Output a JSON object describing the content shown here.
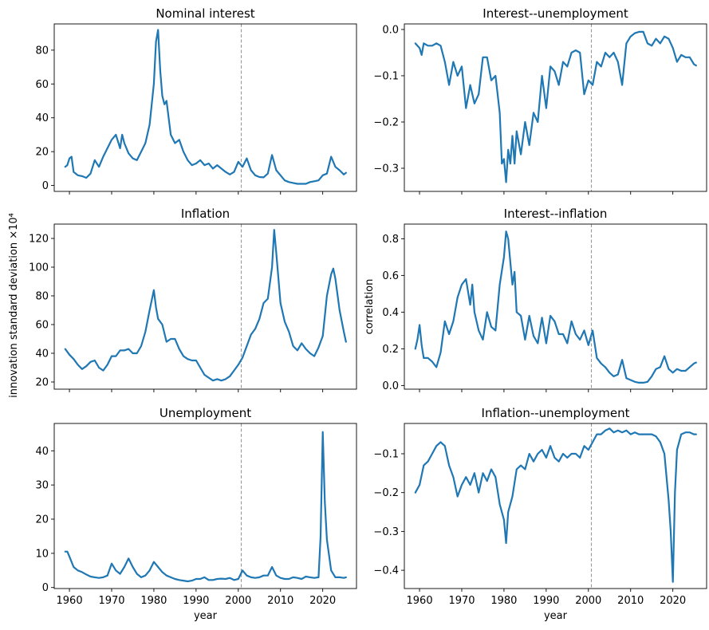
{
  "figure": {
    "ylabel_left": "innovation standard deviation ×10⁴",
    "ylabel_right": "correlation",
    "xlabel": "year"
  },
  "chart_data": [
    {
      "type": "line",
      "title": "Nominal interest",
      "xlim": [
        1956.4,
        2028.0
      ],
      "ylim": [
        -3.5,
        95.5
      ],
      "yticks": [
        0,
        20,
        40,
        60,
        80
      ],
      "xticks": [
        1960,
        1970,
        1980,
        1990,
        2000,
        2010,
        2020
      ],
      "show_xticklabels": false,
      "vline_x": 2000.7,
      "series": [
        {
          "color": "#1f77b4",
          "x": [
            1959,
            1959.5,
            1960,
            1960.5,
            1961,
            1962,
            1963,
            1964,
            1965,
            1966,
            1967,
            1968,
            1969,
            1970,
            1971,
            1972,
            1972.5,
            1973,
            1974,
            1975,
            1976,
            1977,
            1978,
            1979,
            1980,
            1980.5,
            1981,
            1981.5,
            1982,
            1982.5,
            1983,
            1984,
            1985,
            1986,
            1987,
            1988,
            1989,
            1990,
            1991,
            1992,
            1993,
            1994,
            1995,
            1996,
            1997,
            1998,
            1999,
            2000,
            2001,
            2002,
            2003,
            2004,
            2005,
            2006,
            2007,
            2008,
            2009,
            2010,
            2011,
            2012,
            2013,
            2014,
            2015,
            2016,
            2017,
            2018,
            2019,
            2020,
            2021,
            2022,
            2023,
            2024,
            2025,
            2025.5
          ],
          "y": [
            11,
            12,
            16,
            17,
            8,
            6,
            5.5,
            4.5,
            7,
            15,
            11,
            17,
            22,
            27,
            30,
            22,
            30,
            25,
            19,
            16,
            15,
            20,
            25,
            36,
            60,
            85,
            92,
            68,
            53,
            48,
            50,
            30,
            25,
            27,
            20,
            15,
            12,
            13,
            15,
            12,
            13,
            10,
            12,
            10,
            8,
            6.5,
            8,
            14,
            11,
            16,
            9,
            6,
            5,
            4.8,
            7,
            18,
            9,
            6,
            3,
            2,
            1.5,
            1,
            1,
            1,
            2,
            2.5,
            3,
            6,
            7,
            17,
            11,
            9,
            6.5,
            7.5
          ]
        }
      ]
    },
    {
      "type": "line",
      "title": "Interest--unemployment",
      "xlim": [
        1956.4,
        2028.0
      ],
      "ylim": [
        -0.35,
        0.012
      ],
      "yticks": [
        0.0,
        -0.1,
        -0.2,
        -0.3
      ],
      "ytick_labels": [
        "0.0",
        "−0.1",
        "−0.2",
        "−0.3"
      ],
      "xticks": [
        1960,
        1970,
        1980,
        1990,
        2000,
        2010,
        2020
      ],
      "show_xticklabels": false,
      "vline_x": 2000.7,
      "series": [
        {
          "color": "#1f77b4",
          "x": [
            1959,
            1960,
            1960.5,
            1961,
            1962,
            1963,
            1964,
            1965,
            1966,
            1967,
            1968,
            1969,
            1970,
            1971,
            1972,
            1973,
            1974,
            1975,
            1976,
            1977,
            1978,
            1979,
            1979.5,
            1980,
            1980.5,
            1981,
            1981.5,
            1982,
            1982.5,
            1983,
            1984,
            1985,
            1986,
            1987,
            1988,
            1989,
            1990,
            1991,
            1992,
            1993,
            1994,
            1995,
            1996,
            1997,
            1998,
            1999,
            2000,
            2001,
            2002,
            2003,
            2004,
            2005,
            2006,
            2007,
            2008,
            2009,
            2010,
            2011,
            2012,
            2013,
            2014,
            2015,
            2016,
            2017,
            2018,
            2019,
            2020,
            2021,
            2022,
            2023,
            2024,
            2025,
            2025.5
          ],
          "y": [
            -0.03,
            -0.04,
            -0.055,
            -0.03,
            -0.035,
            -0.035,
            -0.03,
            -0.035,
            -0.07,
            -0.12,
            -0.07,
            -0.1,
            -0.08,
            -0.17,
            -0.12,
            -0.16,
            -0.14,
            -0.06,
            -0.06,
            -0.11,
            -0.1,
            -0.18,
            -0.29,
            -0.28,
            -0.33,
            -0.26,
            -0.29,
            -0.23,
            -0.29,
            -0.22,
            -0.27,
            -0.2,
            -0.25,
            -0.18,
            -0.2,
            -0.1,
            -0.17,
            -0.08,
            -0.09,
            -0.12,
            -0.07,
            -0.08,
            -0.05,
            -0.045,
            -0.05,
            -0.14,
            -0.11,
            -0.12,
            -0.07,
            -0.08,
            -0.05,
            -0.06,
            -0.05,
            -0.07,
            -0.12,
            -0.03,
            -0.015,
            -0.008,
            -0.005,
            -0.005,
            -0.03,
            -0.035,
            -0.02,
            -0.03,
            -0.015,
            -0.02,
            -0.04,
            -0.07,
            -0.055,
            -0.06,
            -0.06,
            -0.075,
            -0.078
          ]
        }
      ]
    },
    {
      "type": "line",
      "title": "Inflation",
      "xlim": [
        1956.4,
        2028.0
      ],
      "ylim": [
        15,
        130
      ],
      "yticks": [
        20,
        40,
        60,
        80,
        100,
        120
      ],
      "xticks": [
        1960,
        1970,
        1980,
        1990,
        2000,
        2010,
        2020
      ],
      "show_xticklabels": false,
      "vline_x": 2000.7,
      "series": [
        {
          "color": "#1f77b4",
          "x": [
            1959,
            1960,
            1961,
            1962,
            1963,
            1964,
            1965,
            1966,
            1967,
            1968,
            1969,
            1970,
            1971,
            1972,
            1973,
            1974,
            1975,
            1976,
            1977,
            1978,
            1979,
            1980,
            1980.5,
            1981,
            1982,
            1983,
            1984,
            1985,
            1986,
            1987,
            1988,
            1989,
            1990,
            1991,
            1992,
            1993,
            1994,
            1995,
            1996,
            1997,
            1998,
            1999,
            2000,
            2001,
            2002,
            2003,
            2004,
            2005,
            2006,
            2007,
            2008,
            2008.5,
            2009,
            2010,
            2011,
            2012,
            2013,
            2014,
            2015,
            2016,
            2017,
            2018,
            2019,
            2020,
            2021,
            2022,
            2022.5,
            2023,
            2024,
            2025,
            2025.5
          ],
          "y": [
            43,
            39,
            36,
            32,
            29,
            31,
            34,
            35,
            30,
            28,
            32,
            38,
            38,
            42,
            42,
            43,
            40,
            40,
            45,
            55,
            70,
            84,
            72,
            64,
            60,
            48,
            50,
            50,
            43,
            38,
            36,
            35,
            35,
            30,
            25,
            23,
            21,
            22,
            21,
            22,
            24,
            28,
            32,
            37,
            45,
            53,
            57,
            64,
            75,
            78,
            100,
            126,
            110,
            75,
            62,
            55,
            45,
            42,
            47,
            43,
            40,
            38,
            44,
            52,
            80,
            95,
            99,
            92,
            70,
            55,
            48
          ]
        }
      ]
    },
    {
      "type": "line",
      "title": "Interest--inflation",
      "xlim": [
        1956.4,
        2028.0
      ],
      "ylim": [
        -0.02,
        0.88
      ],
      "yticks": [
        0.0,
        0.2,
        0.4,
        0.6,
        0.8
      ],
      "ytick_labels": [
        "0.0",
        "0.2",
        "0.4",
        "0.6",
        "0.8"
      ],
      "ylabel": "correlation",
      "xticks": [
        1960,
        1970,
        1980,
        1990,
        2000,
        2010,
        2020
      ],
      "show_xticklabels": false,
      "vline_x": 2000.7,
      "series": [
        {
          "color": "#1f77b4",
          "x": [
            1959,
            1959.5,
            1960,
            1960.5,
            1961,
            1962,
            1963,
            1964,
            1965,
            1966,
            1967,
            1968,
            1969,
            1970,
            1971,
            1972,
            1972.5,
            1973,
            1974,
            1975,
            1976,
            1977,
            1978,
            1979,
            1980,
            1980.5,
            1981,
            1982,
            1982.5,
            1983,
            1984,
            1985,
            1986,
            1987,
            1988,
            1989,
            1990,
            1991,
            1992,
            1993,
            1994,
            1995,
            1996,
            1997,
            1998,
            1999,
            2000,
            2001,
            2002,
            2003,
            2004,
            2005,
            2006,
            2007,
            2008,
            2009,
            2010,
            2011,
            2012,
            2013,
            2014,
            2015,
            2016,
            2017,
            2018,
            2019,
            2020,
            2021,
            2022,
            2023,
            2024,
            2025,
            2025.5
          ],
          "y": [
            0.2,
            0.25,
            0.33,
            0.22,
            0.15,
            0.15,
            0.13,
            0.1,
            0.18,
            0.35,
            0.28,
            0.35,
            0.48,
            0.55,
            0.58,
            0.44,
            0.55,
            0.4,
            0.3,
            0.25,
            0.4,
            0.32,
            0.3,
            0.55,
            0.7,
            0.84,
            0.8,
            0.55,
            0.62,
            0.4,
            0.38,
            0.25,
            0.38,
            0.27,
            0.23,
            0.37,
            0.23,
            0.38,
            0.35,
            0.28,
            0.28,
            0.23,
            0.35,
            0.28,
            0.25,
            0.3,
            0.22,
            0.3,
            0.15,
            0.12,
            0.1,
            0.07,
            0.05,
            0.06,
            0.14,
            0.04,
            0.03,
            0.02,
            0.015,
            0.015,
            0.02,
            0.05,
            0.09,
            0.1,
            0.16,
            0.09,
            0.07,
            0.09,
            0.08,
            0.08,
            0.1,
            0.12,
            0.125
          ]
        }
      ]
    },
    {
      "type": "line",
      "title": "Unemployment",
      "xlim": [
        1956.4,
        2028.0
      ],
      "ylim": [
        -0.3,
        48
      ],
      "yticks": [
        0,
        10,
        20,
        30,
        40
      ],
      "xticks": [
        1960,
        1970,
        1980,
        1990,
        2000,
        2010,
        2020
      ],
      "show_xticklabels": true,
      "xlabel": "year",
      "vline_x": 2000.7,
      "series": [
        {
          "color": "#1f77b4",
          "x": [
            1959,
            1959.5,
            1960,
            1961,
            1962,
            1963,
            1964,
            1965,
            1966,
            1967,
            1968,
            1969,
            1970,
            1971,
            1972,
            1973,
            1974,
            1975,
            1976,
            1977,
            1978,
            1979,
            1980,
            1981,
            1982,
            1983,
            1984,
            1985,
            1986,
            1987,
            1988,
            1989,
            1990,
            1991,
            1992,
            1993,
            1994,
            1995,
            1996,
            1997,
            1998,
            1999,
            2000,
            2001,
            2002,
            2003,
            2004,
            2005,
            2006,
            2007,
            2008,
            2009,
            2010,
            2011,
            2012,
            2013,
            2014,
            2015,
            2016,
            2017,
            2018,
            2019,
            2019.5,
            2020,
            2020.5,
            2021,
            2022,
            2023,
            2024,
            2025,
            2025.5
          ],
          "y": [
            10.5,
            10.5,
            9,
            6,
            5,
            4.5,
            3.8,
            3.2,
            3,
            2.8,
            3,
            3.5,
            7,
            5,
            4,
            6,
            8.5,
            6,
            4,
            3,
            3.5,
            5,
            7.5,
            6,
            4.5,
            3.5,
            3,
            2.5,
            2.2,
            2,
            1.8,
            2,
            2.5,
            2.5,
            3,
            2.2,
            2.2,
            2.5,
            2.6,
            2.5,
            2.8,
            2.2,
            2.5,
            5,
            3.5,
            3,
            2.8,
            3,
            3.5,
            3.5,
            6,
            3.5,
            2.8,
            2.5,
            2.5,
            3,
            2.8,
            2.5,
            3.2,
            3,
            2.8,
            3,
            15,
            45.5,
            25,
            14,
            5,
            3,
            3,
            2.8,
            3
          ]
        }
      ]
    },
    {
      "type": "line",
      "title": "Inflation--unemployment",
      "xlim": [
        1956.4,
        2028.0
      ],
      "ylim": [
        -0.447,
        -0.022
      ],
      "yticks": [
        -0.1,
        -0.2,
        -0.3,
        -0.4
      ],
      "ytick_labels": [
        "−0.1",
        "−0.2",
        "−0.3",
        "−0.4"
      ],
      "xticks": [
        1960,
        1970,
        1980,
        1990,
        2000,
        2010,
        2020
      ],
      "xtick_labels": [
        "1960",
        "1970",
        "1980",
        "1990",
        "2000",
        "2010",
        "2020"
      ],
      "show_xticklabels": true,
      "xlabel": "year",
      "vline_x": 2000.7,
      "series": [
        {
          "color": "#1f77b4",
          "x": [
            1959,
            1960,
            1961,
            1962,
            1963,
            1964,
            1965,
            1966,
            1967,
            1968,
            1969,
            1970,
            1971,
            1972,
            1973,
            1974,
            1975,
            1976,
            1977,
            1978,
            1979,
            1980,
            1980.5,
            1981,
            1982,
            1983,
            1984,
            1985,
            1986,
            1987,
            1988,
            1989,
            1990,
            1991,
            1992,
            1993,
            1994,
            1995,
            1996,
            1997,
            1998,
            1999,
            2000,
            2001,
            2002,
            2003,
            2004,
            2005,
            2006,
            2007,
            2008,
            2009,
            2010,
            2011,
            2012,
            2013,
            2014,
            2015,
            2016,
            2017,
            2018,
            2019,
            2019.5,
            2020,
            2020.5,
            2021,
            2022,
            2023,
            2024,
            2025,
            2025.5
          ],
          "y": [
            -0.2,
            -0.18,
            -0.13,
            -0.12,
            -0.1,
            -0.08,
            -0.07,
            -0.08,
            -0.13,
            -0.16,
            -0.21,
            -0.18,
            -0.16,
            -0.18,
            -0.15,
            -0.2,
            -0.15,
            -0.17,
            -0.14,
            -0.16,
            -0.23,
            -0.27,
            -0.33,
            -0.25,
            -0.21,
            -0.14,
            -0.13,
            -0.14,
            -0.1,
            -0.12,
            -0.1,
            -0.09,
            -0.11,
            -0.08,
            -0.11,
            -0.12,
            -0.1,
            -0.11,
            -0.1,
            -0.1,
            -0.11,
            -0.08,
            -0.09,
            -0.07,
            -0.05,
            -0.05,
            -0.04,
            -0.035,
            -0.045,
            -0.04,
            -0.045,
            -0.04,
            -0.05,
            -0.045,
            -0.05,
            -0.05,
            -0.05,
            -0.05,
            -0.055,
            -0.07,
            -0.1,
            -0.22,
            -0.3,
            -0.43,
            -0.2,
            -0.09,
            -0.05,
            -0.045,
            -0.045,
            -0.05,
            -0.05
          ]
        }
      ]
    }
  ]
}
